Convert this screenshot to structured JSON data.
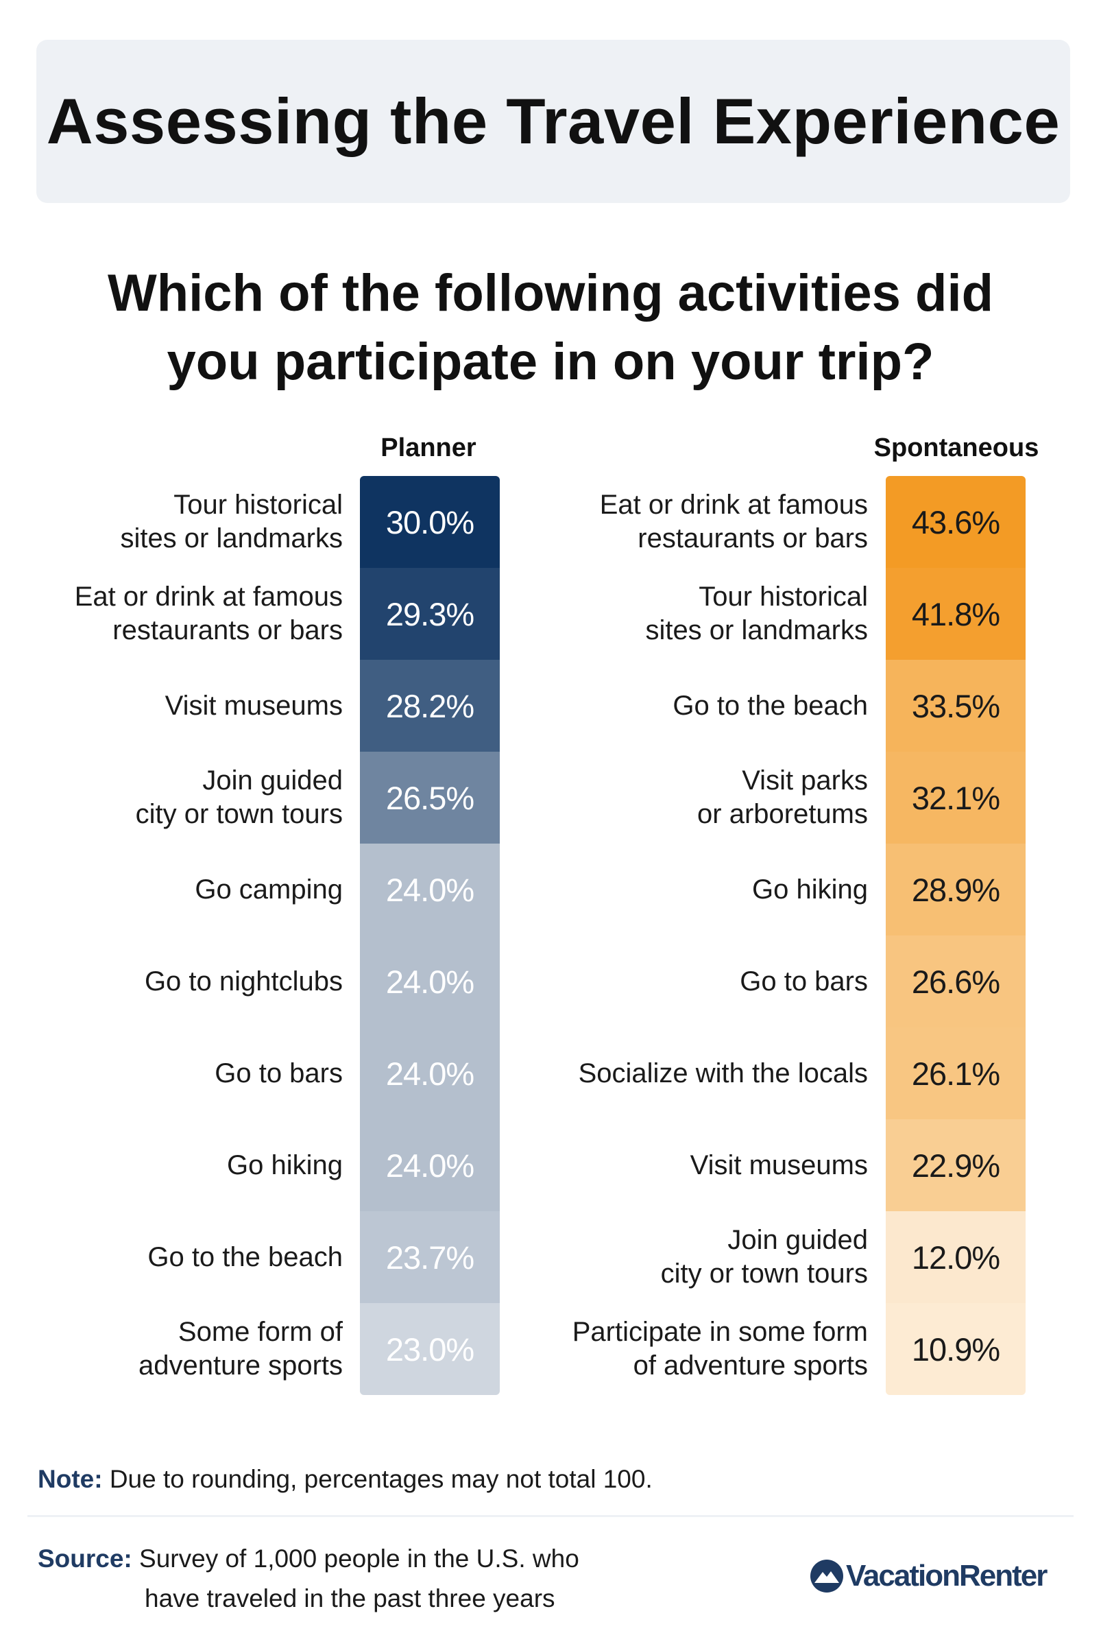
{
  "title": "Assessing the Travel Experience",
  "question": [
    "Which of the following activities did",
    "you participate in on your trip?"
  ],
  "chart_data": [
    {
      "type": "table",
      "series_name": "Planner",
      "color": "#0f3461",
      "categories": [
        "Tour historical\nsites or landmarks",
        "Eat or drink at famous\nrestaurants or bars",
        "Visit museums",
        "Join guided\ncity or town tours",
        "Go camping",
        "Go to nightclubs",
        "Go to bars",
        "Go hiking",
        "Go to the beach",
        "Some form of\nadventure sports"
      ],
      "values": [
        30.0,
        29.3,
        28.2,
        26.5,
        24.0,
        24.0,
        24.0,
        24.0,
        23.7,
        23.0
      ],
      "value_labels": [
        "30.0%",
        "29.3%",
        "28.2%",
        "26.5%",
        "24.0%",
        "24.0%",
        "24.0%",
        "24.0%",
        "23.7%",
        "23.0%"
      ]
    },
    {
      "type": "table",
      "series_name": "Spontaneous",
      "color": "#f39b25",
      "categories": [
        "Eat or drink at famous\nrestaurants or bars",
        "Tour historical\nsites or landmarks",
        "Go to the beach",
        "Visit parks\nor arboretums",
        "Go hiking",
        "Go to bars",
        "Socialize with the locals",
        "Visit museums",
        "Join guided\ncity or town tours",
        "Participate in some form\nof adventure sports"
      ],
      "values": [
        43.6,
        41.8,
        33.5,
        32.1,
        28.9,
        26.6,
        26.1,
        22.9,
        12.0,
        10.9
      ],
      "value_labels": [
        "43.6%",
        "41.8%",
        "33.5%",
        "32.1%",
        "28.9%",
        "26.6%",
        "26.1%",
        "22.9%",
        "12.0%",
        "10.9%"
      ]
    }
  ],
  "note": {
    "label": "Note:",
    "text": " Due to rounding, percentages may not total 100."
  },
  "source": {
    "label": "Source:",
    "line1": " Survey of 1,000 people in the U.S. who",
    "line2": "have traveled in the past three years"
  },
  "logo": {
    "text": "VacationRenter",
    "color": "#1f3b63",
    "icon": "mountain-logo-icon"
  }
}
